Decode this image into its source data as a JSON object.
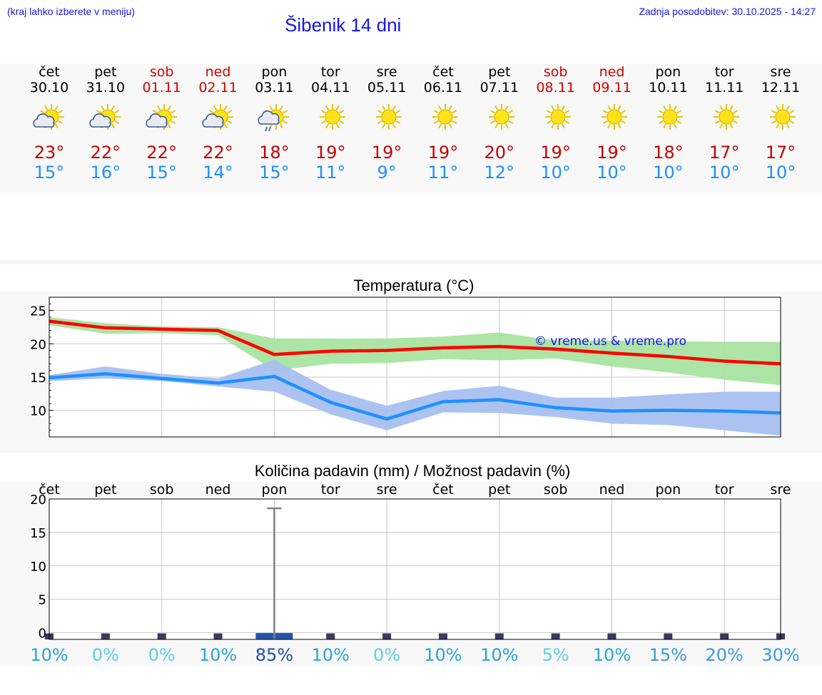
{
  "header": {
    "hint": "(kraj lahko izberete v meniju)",
    "title": "Šibenik 14 dni",
    "updated": "Zadnja posodobitev: 30.10.2025 - 14:27"
  },
  "colors": {
    "accent": "#1515e6",
    "max_temp": "#c40000",
    "min_temp": "#1e90ff",
    "weekend": "#d40000",
    "max_band": "#a8e4a0",
    "min_band": "#a8c0f0"
  },
  "days": [
    {
      "name": "čet",
      "date": "30.10",
      "icon": "sun-cloud-icon",
      "tmax": "23°",
      "tmin": "15°",
      "weekend": false
    },
    {
      "name": "pet",
      "date": "31.10",
      "icon": "sun-cloud-icon",
      "tmax": "22°",
      "tmin": "16°",
      "weekend": false
    },
    {
      "name": "sob",
      "date": "01.11",
      "icon": "sun-cloud-icon",
      "tmax": "22°",
      "tmin": "15°",
      "weekend": true
    },
    {
      "name": "ned",
      "date": "02.11",
      "icon": "sun-cloud-icon",
      "tmax": "22°",
      "tmin": "14°",
      "weekend": true
    },
    {
      "name": "pon",
      "date": "03.11",
      "icon": "sun-rain-icon",
      "tmax": "18°",
      "tmin": "15°",
      "weekend": false
    },
    {
      "name": "tor",
      "date": "04.11",
      "icon": "sun-icon",
      "tmax": "19°",
      "tmin": "11°",
      "weekend": false
    },
    {
      "name": "sre",
      "date": "05.11",
      "icon": "sun-icon",
      "tmax": "19°",
      "tmin": "9°",
      "weekend": false
    },
    {
      "name": "čet",
      "date": "06.11",
      "icon": "sun-icon",
      "tmax": "19°",
      "tmin": "11°",
      "weekend": false
    },
    {
      "name": "pet",
      "date": "07.11",
      "icon": "sun-icon",
      "tmax": "20°",
      "tmin": "12°",
      "weekend": false
    },
    {
      "name": "sob",
      "date": "08.11",
      "icon": "sun-icon",
      "tmax": "19°",
      "tmin": "10°",
      "weekend": true
    },
    {
      "name": "ned",
      "date": "09.11",
      "icon": "sun-icon",
      "tmax": "19°",
      "tmin": "10°",
      "weekend": true
    },
    {
      "name": "pon",
      "date": "10.11",
      "icon": "sun-icon",
      "tmax": "18°",
      "tmin": "10°",
      "weekend": false
    },
    {
      "name": "tor",
      "date": "11.11",
      "icon": "sun-icon",
      "tmax": "17°",
      "tmin": "10°",
      "weekend": false
    },
    {
      "name": "sre",
      "date": "12.11",
      "icon": "sun-icon",
      "tmax": "17°",
      "tmin": "10°",
      "weekend": false
    }
  ],
  "chart_data": [
    {
      "type": "line",
      "title": "Temperatura (°C)",
      "x": [
        0,
        1,
        2,
        3,
        4,
        5,
        6,
        7,
        8,
        9,
        10,
        11,
        12,
        13
      ],
      "ylim": [
        6,
        27
      ],
      "yticks": [
        10,
        15,
        20,
        25
      ],
      "grid": true,
      "watermark": "© vreme.us & vreme.pro",
      "series": [
        {
          "name": "max",
          "color": "#ff0000",
          "values": [
            23.4,
            22.4,
            22.2,
            22.0,
            18.4,
            18.9,
            19.0,
            19.4,
            19.6,
            19.2,
            18.6,
            18.1,
            17.4,
            17.0
          ],
          "band_low": [
            22.8,
            21.5,
            21.6,
            21.3,
            16.0,
            17.0,
            17.1,
            17.7,
            17.5,
            17.8,
            16.6,
            15.7,
            14.6,
            13.8
          ],
          "band_high": [
            24.0,
            23.1,
            22.6,
            22.5,
            20.8,
            20.8,
            20.8,
            21.1,
            21.7,
            20.5,
            20.5,
            20.4,
            20.3,
            20.3
          ]
        },
        {
          "name": "min",
          "color": "#1e90ff",
          "values": [
            14.9,
            15.5,
            14.8,
            14.1,
            15.1,
            11.2,
            8.7,
            11.3,
            11.6,
            10.4,
            9.9,
            10.0,
            9.9,
            9.6
          ],
          "band_low": [
            14.4,
            14.8,
            14.4,
            13.6,
            12.8,
            9.4,
            7.0,
            9.7,
            9.6,
            9.0,
            8.0,
            7.8,
            7.0,
            6.2
          ],
          "band_high": [
            15.3,
            16.6,
            15.5,
            14.8,
            17.6,
            13.1,
            10.7,
            12.9,
            13.7,
            11.9,
            11.9,
            12.4,
            12.8,
            12.8
          ]
        }
      ]
    },
    {
      "type": "bar",
      "title": "Količina padavin (mm) / Možnost padavin (%)",
      "categories": [
        "čet",
        "pet",
        "sob",
        "ned",
        "pon",
        "tor",
        "sre",
        "čet",
        "pet",
        "sob",
        "ned",
        "pon",
        "tor",
        "sre"
      ],
      "ylim": [
        -1,
        20
      ],
      "yticks": [
        0,
        5,
        10,
        15,
        20
      ],
      "grid": true,
      "values": [
        0,
        0,
        0,
        0,
        0.2,
        0,
        0,
        0,
        0,
        0,
        0,
        0,
        0,
        0
      ],
      "error_high": [
        0,
        0,
        0,
        0,
        18.6,
        0,
        0,
        0,
        0,
        0,
        0,
        0,
        0,
        0
      ],
      "probability": [
        "10%",
        "0%",
        "0%",
        "10%",
        "85%",
        "10%",
        "0%",
        "10%",
        "10%",
        "5%",
        "10%",
        "15%",
        "20%",
        "30%"
      ]
    }
  ]
}
